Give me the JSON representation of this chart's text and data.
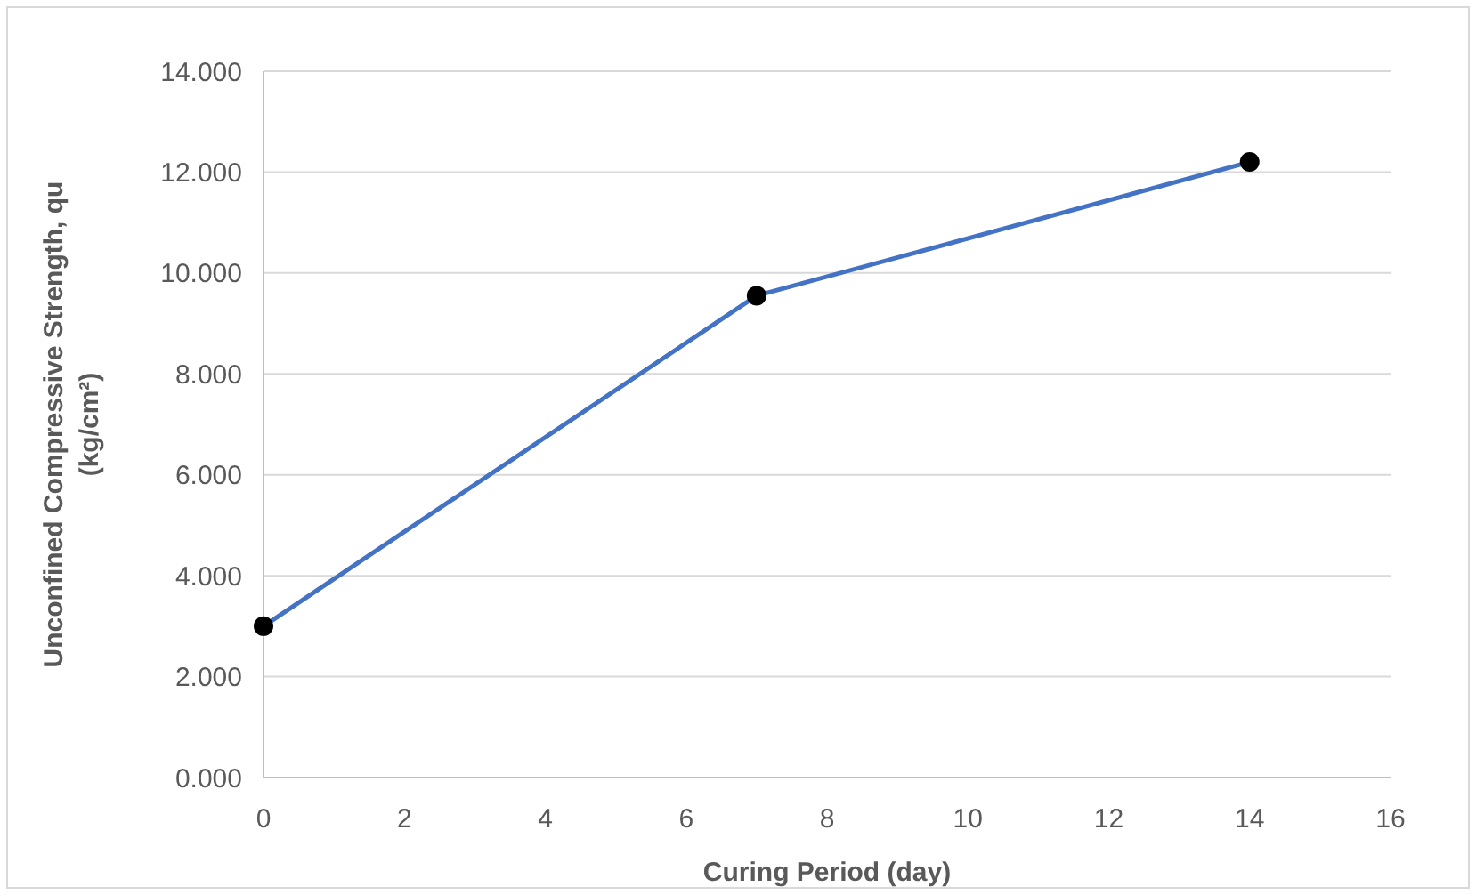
{
  "chart_data": {
    "type": "line",
    "xlabel": "Curing Period (day)",
    "ylabel": "Unconfined Compressive Strength, qu\n(kg/cm²)",
    "x": [
      0,
      7,
      14
    ],
    "series": [
      {
        "color": "#4472c4",
        "values": [
          3.0,
          9.55,
          12.2
        ]
      }
    ],
    "xlim": [
      0,
      16
    ],
    "xticks": [
      0,
      2,
      4,
      6,
      8,
      10,
      12,
      14,
      16
    ],
    "ylim": [
      0,
      14
    ],
    "yticks": [
      {
        "value": 0,
        "label": "0.000"
      },
      {
        "value": 2,
        "label": "2.000"
      },
      {
        "value": 4,
        "label": "4.000"
      },
      {
        "value": 6,
        "label": "6.000"
      },
      {
        "value": 8,
        "label": "8.000"
      },
      {
        "value": 10,
        "label": "10.000"
      },
      {
        "value": 12,
        "label": "12.000"
      },
      {
        "value": 14,
        "label": "14.000"
      }
    ],
    "grid": "y",
    "marker": "circle",
    "line_style": "solid"
  }
}
